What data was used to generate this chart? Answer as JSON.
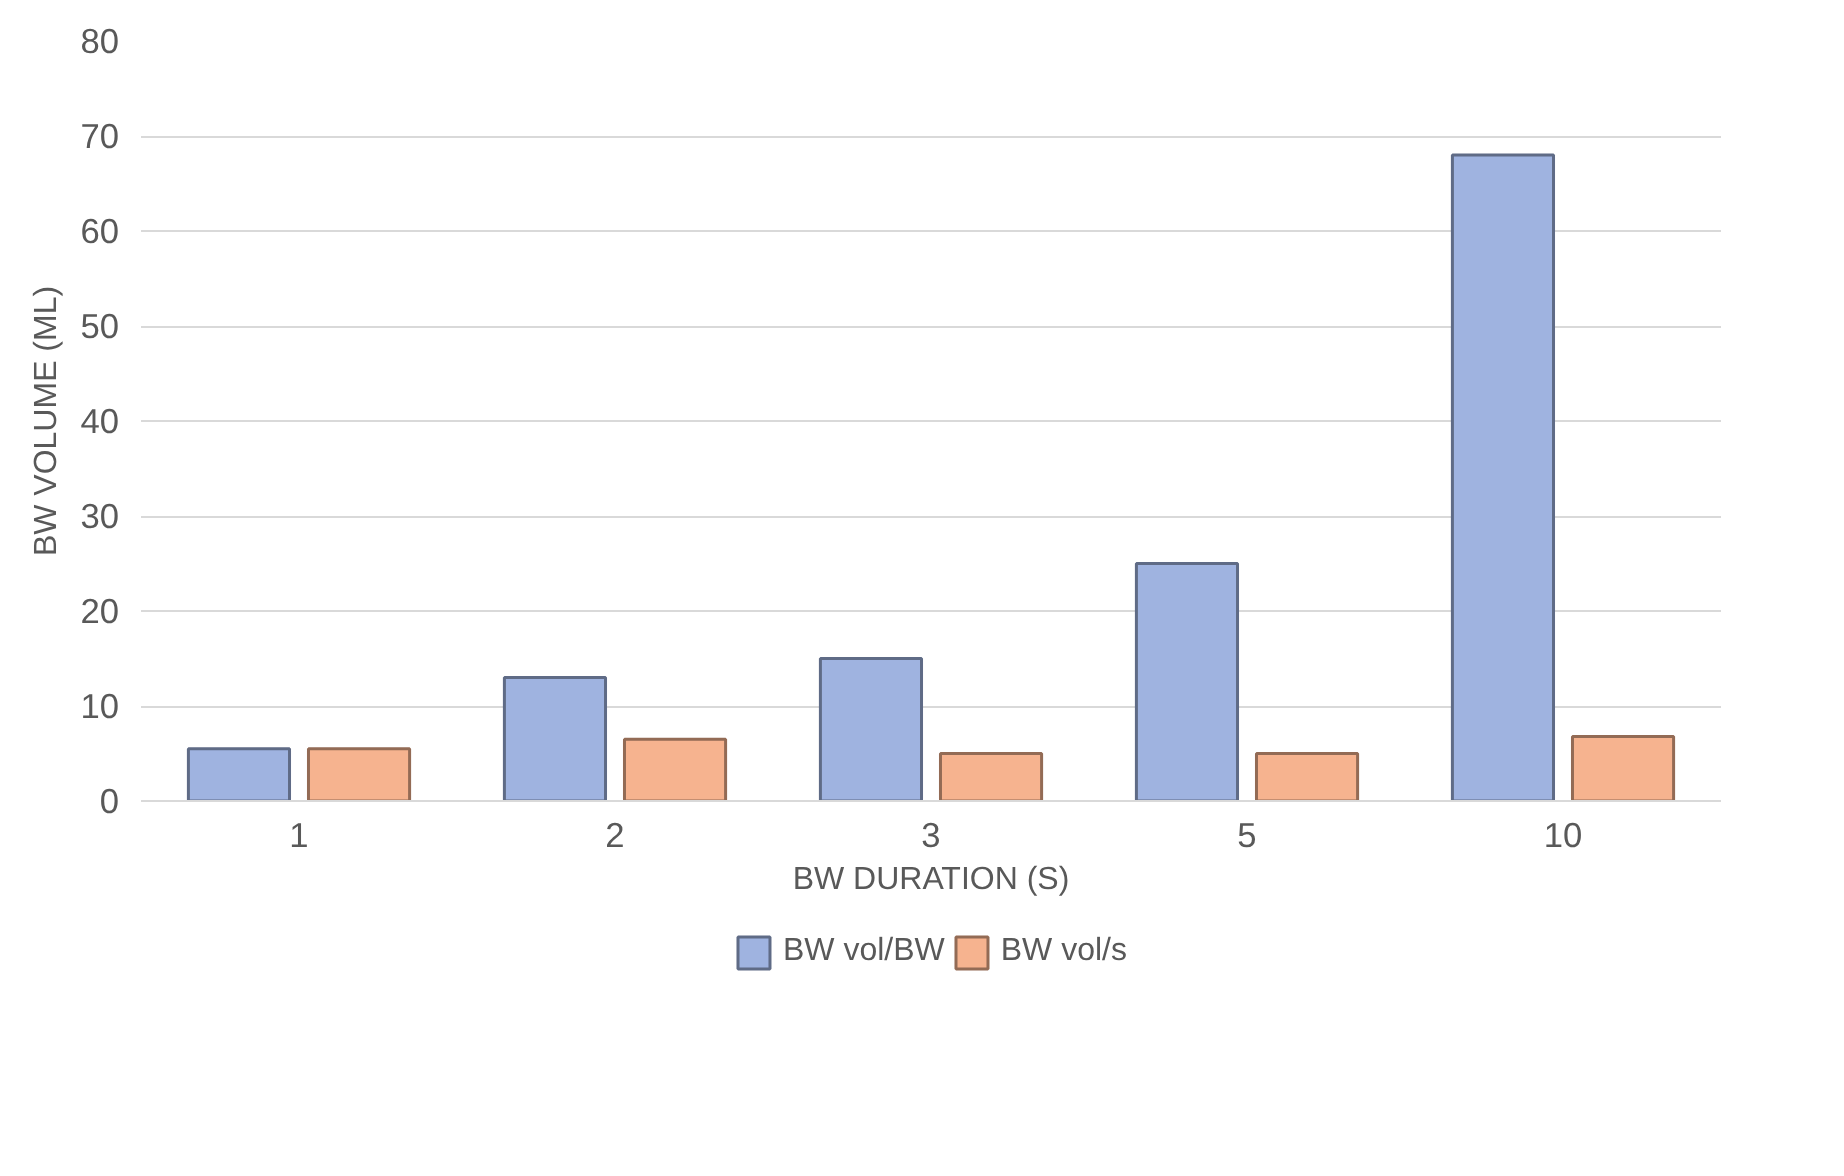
{
  "chart_data": {
    "type": "bar",
    "xlabel": "BW DURATION (S)",
    "ylabel": "BW VOLUME (ML)",
    "categories": [
      "1",
      "2",
      "3",
      "5",
      "10"
    ],
    "series": [
      {
        "name": "BW vol/BW",
        "color": "#9fb3e0",
        "values": [
          5.5,
          13,
          15,
          25,
          68
        ]
      },
      {
        "name": "BW vol/s",
        "color": "#f6b38f",
        "values": [
          5.5,
          6.5,
          5,
          5,
          6.8
        ]
      }
    ],
    "ylim": [
      0,
      80
    ],
    "yticks": [
      0,
      10,
      20,
      30,
      40,
      50,
      60,
      70,
      80
    ],
    "grid": "y",
    "legend": "bottom"
  }
}
